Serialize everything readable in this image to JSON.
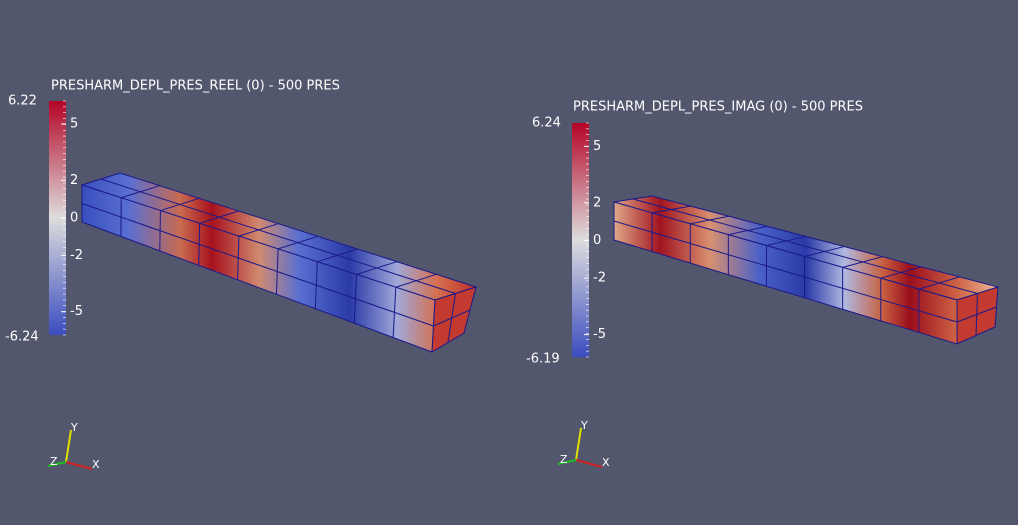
{
  "views": [
    {
      "title": "PRESHARM_DEPL_PRES_REEL (0) - 500 PRES",
      "scalar_bar": {
        "range": [
          -6.24,
          6.22
        ],
        "ticks": [
          -5,
          -2,
          0,
          2,
          5
        ]
      },
      "axes": {
        "x": "X",
        "y": "Y",
        "z": "Z"
      }
    },
    {
      "title": "PRESHARM_DEPL_PRES_IMAG (0) - 500 PRES",
      "scalar_bar": {
        "range": [
          -6.19,
          6.24
        ],
        "ticks": [
          -5,
          -2,
          0,
          2,
          5
        ]
      },
      "axes": {
        "x": "X",
        "y": "Y",
        "z": "Z"
      }
    }
  ]
}
